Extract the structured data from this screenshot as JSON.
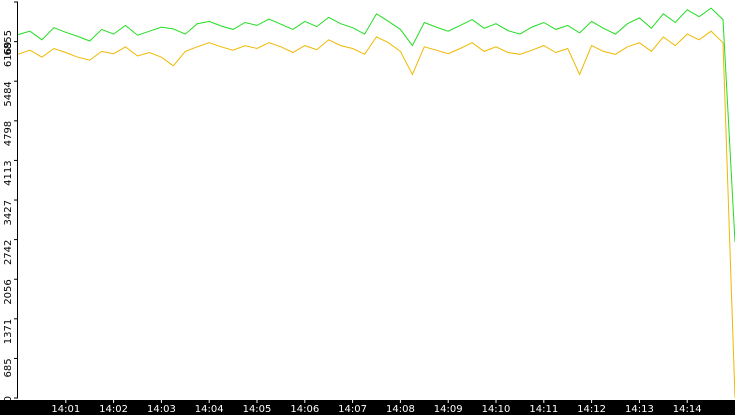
{
  "chart_data": {
    "type": "line",
    "x": [
      840,
      840.25,
      840.5,
      840.75,
      841,
      841.25,
      841.5,
      841.75,
      842,
      842.25,
      842.5,
      842.75,
      843,
      843.25,
      843.5,
      843.75,
      844,
      844.25,
      844.5,
      844.75,
      845,
      845.25,
      845.5,
      845.75,
      846,
      846.25,
      846.5,
      846.75,
      847,
      847.25,
      847.5,
      847.75,
      848,
      848.25,
      848.5,
      848.75,
      849,
      849.25,
      849.5,
      849.75,
      850,
      850.25,
      850.5,
      850.75,
      851,
      851.25,
      851.5,
      851.75,
      852,
      852.25,
      852.5,
      852.75,
      853,
      853.25,
      853.5,
      853.75,
      854,
      854.25,
      854.5,
      854.75,
      855
    ],
    "series": [
      {
        "color": "#22dd22",
        "values": [
          6290,
          6350,
          6200,
          6410,
          6330,
          6260,
          6180,
          6380,
          6300,
          6450,
          6280,
          6350,
          6420,
          6390,
          6300,
          6480,
          6520,
          6440,
          6380,
          6500,
          6450,
          6560,
          6470,
          6380,
          6520,
          6430,
          6590,
          6480,
          6410,
          6300,
          6650,
          6520,
          6380,
          6100,
          6500,
          6420,
          6350,
          6450,
          6550,
          6400,
          6480,
          6360,
          6300,
          6420,
          6500,
          6380,
          6450,
          6320,
          6520,
          6400,
          6300,
          6480,
          6580,
          6400,
          6650,
          6500,
          6720,
          6600,
          6750,
          6550,
          2700
        ]
      },
      {
        "color": "#f0b800",
        "values": [
          5950,
          6020,
          5900,
          6050,
          5980,
          5900,
          5850,
          6000,
          5960,
          6080,
          5920,
          5980,
          5900,
          5750,
          6000,
          6080,
          6150,
          6080,
          6020,
          6100,
          6050,
          6150,
          6080,
          5980,
          6100,
          6030,
          6200,
          6100,
          6050,
          5950,
          6250,
          6150,
          6000,
          5600,
          6080,
          6020,
          5960,
          6050,
          6150,
          6000,
          6080,
          5980,
          5950,
          6020,
          6100,
          5980,
          6050,
          5600,
          6100,
          6000,
          5950,
          6080,
          6150,
          6000,
          6250,
          6100,
          6300,
          6200,
          6350,
          6150,
          0
        ]
      }
    ],
    "xlim": [
      840,
      855
    ],
    "xticks": [
      {
        "value": 841,
        "label": "14:01"
      },
      {
        "value": 842,
        "label": "14:02"
      },
      {
        "value": 843,
        "label": "14:03"
      },
      {
        "value": 844,
        "label": "14:04"
      },
      {
        "value": 845,
        "label": "14:05"
      },
      {
        "value": 846,
        "label": "14:06"
      },
      {
        "value": 847,
        "label": "14:07"
      },
      {
        "value": 848,
        "label": "14:08"
      },
      {
        "value": 849,
        "label": "14:09"
      },
      {
        "value": 850,
        "label": "14:10"
      },
      {
        "value": 851,
        "label": "14:11"
      },
      {
        "value": 852,
        "label": "14:12"
      },
      {
        "value": 853,
        "label": "14:13"
      },
      {
        "value": 854,
        "label": "14:14"
      }
    ],
    "ylim": [
      0,
      6855
    ],
    "yticks": [
      0,
      685,
      1371,
      2056,
      2742,
      3427,
      4113,
      4798,
      5484,
      6169,
      6855
    ]
  }
}
